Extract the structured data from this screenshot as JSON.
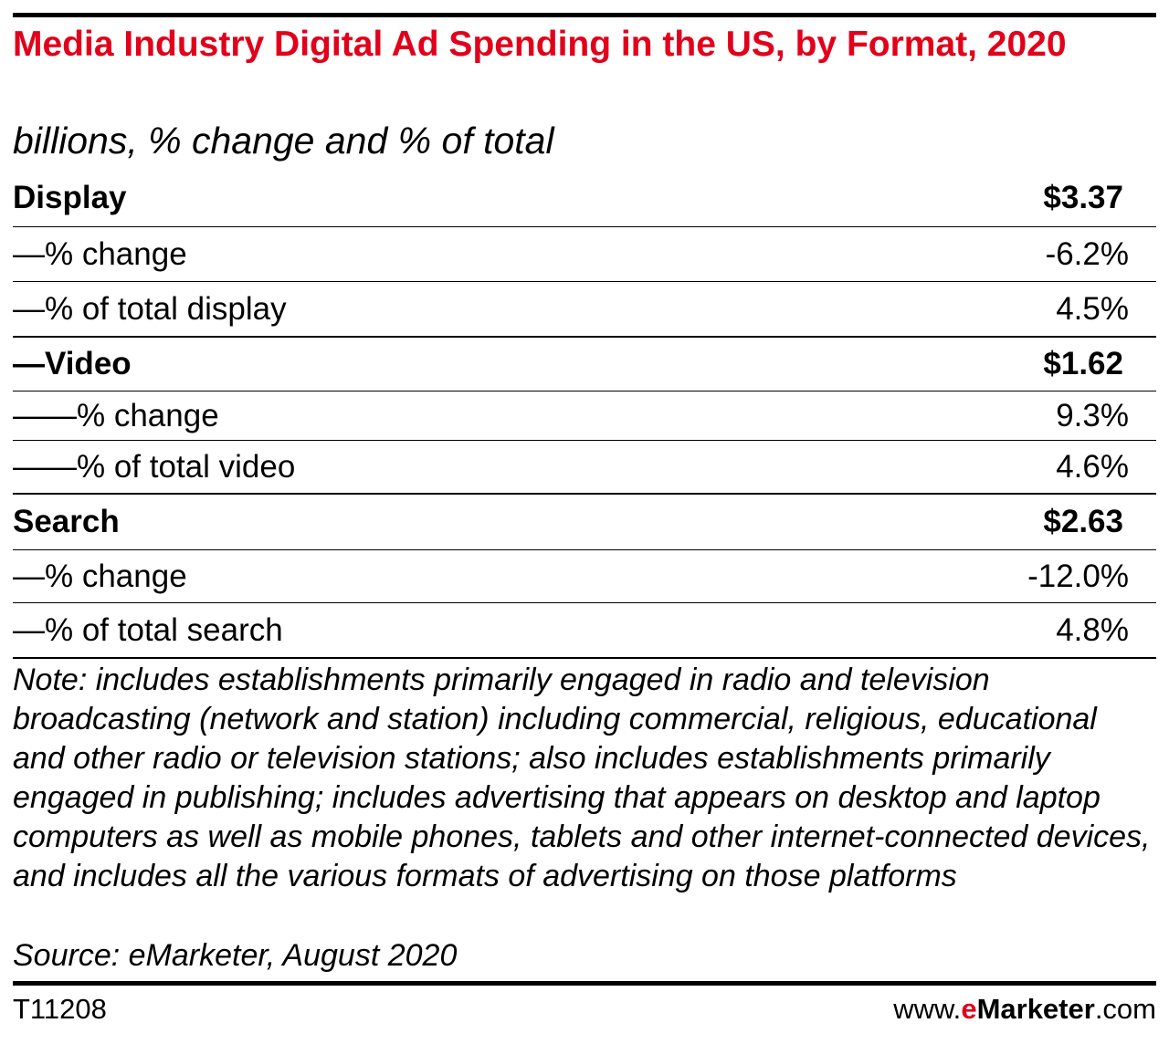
{
  "header": {
    "title": "Media Industry Digital Ad Spending in the US, by Format, 2020",
    "subtitle": "billions, % change and % of total"
  },
  "chart_data": {
    "type": "table",
    "title": "Media Industry Digital Ad Spending in the US, by Format, 2020",
    "subtitle": "billions, % change and % of total",
    "rows": [
      {
        "label": "Display",
        "value": "$3.37"
      },
      {
        "label": "—% change",
        "value": "-6.2%"
      },
      {
        "label": "—% of total display",
        "value": "4.5%"
      },
      {
        "label": "—Video",
        "value": "$1.62"
      },
      {
        "label": "——% change",
        "value": "9.3%"
      },
      {
        "label": "——% of total video",
        "value": "4.6%"
      },
      {
        "label": "Search",
        "value": "$2.63"
      },
      {
        "label": "—% change",
        "value": "-12.0%"
      },
      {
        "label": "—% of total search",
        "value": "4.8%"
      }
    ]
  },
  "footer": {
    "note": "Note: includes establishments primarily engaged in radio and television broadcasting (network and station) including commercial, religious, educational and other radio or television stations; also includes establishments primarily engaged in publishing; includes advertising that appears on desktop and laptop computers as well as mobile phones, tablets and other internet-connected devices, and includes all the various formats of advertising on those platforms",
    "source": "Source: eMarketer, August 2020",
    "chart_id": "T11208",
    "brand_prefix": "www.",
    "brand_accent": "e",
    "brand_name": "Marketer",
    "brand_suffix": ".com"
  },
  "colors": {
    "title": "#e2001a",
    "text": "#000000",
    "brand_accent": "#e2001a"
  }
}
